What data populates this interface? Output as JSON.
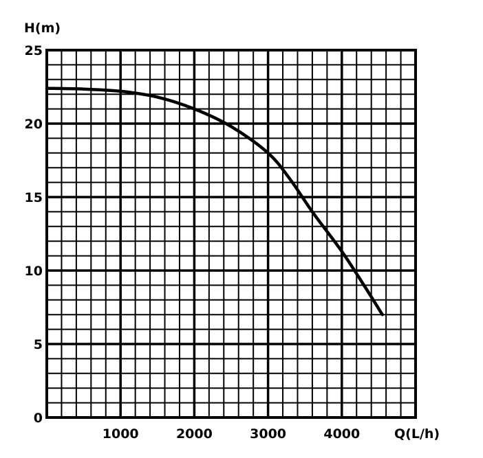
{
  "chart_data": {
    "type": "line",
    "title": "",
    "xlabel": "Q(L/h)",
    "ylabel": "H(m)",
    "xlim": [
      0,
      5000
    ],
    "ylim": [
      0,
      25
    ],
    "x_ticks": [
      1000,
      2000,
      3000,
      4000
    ],
    "y_ticks": [
      0,
      5,
      10,
      15,
      20,
      25
    ],
    "grid": true,
    "legend": "none",
    "line_color": "#000000",
    "series": [
      {
        "x": [
          0,
          500,
          1000,
          1500,
          2000,
          2500,
          3000,
          3300,
          3600,
          4000,
          4300,
          4550
        ],
        "values": [
          22.4,
          22.35,
          22.2,
          21.8,
          21.0,
          19.8,
          18.0,
          16.2,
          14.0,
          11.3,
          9.0,
          7.0
        ]
      }
    ]
  }
}
